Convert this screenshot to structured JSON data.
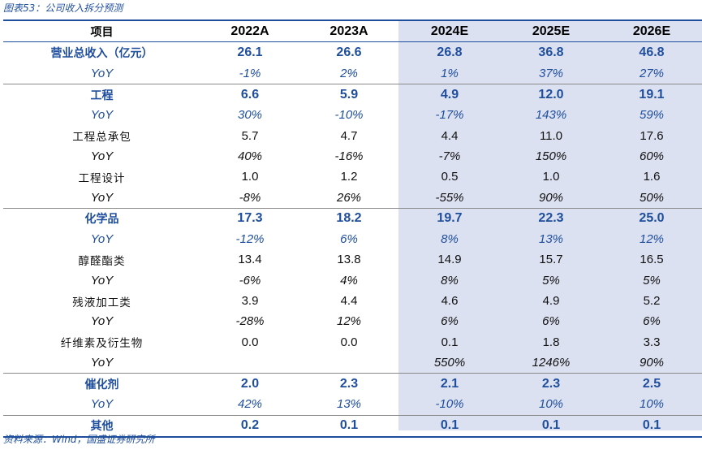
{
  "caption": "图表53：公司收入拆分预测",
  "source": "资料来源：Wind，国盛证券研究所",
  "colors": {
    "accent": "#1f4e9c",
    "forecast_bg": "#dbe1f1",
    "separator": "#8a8a8a"
  },
  "header": {
    "label": "项目",
    "cols": [
      "2022A",
      "2023A",
      "2024E",
      "2025E",
      "2026E"
    ]
  },
  "rows": [
    {
      "label": "营业总收入（亿元）",
      "vals": [
        "26.1",
        "26.6",
        "26.8",
        "36.8",
        "46.8"
      ]
    },
    {
      "label": "YoY",
      "vals": [
        "-1%",
        "2%",
        "1%",
        "37%",
        "27%"
      ]
    },
    {
      "label": "工程",
      "vals": [
        "6.6",
        "5.9",
        "4.9",
        "12.0",
        "19.1"
      ]
    },
    {
      "label": "YoY",
      "vals": [
        "30%",
        "-10%",
        "-17%",
        "143%",
        "59%"
      ]
    },
    {
      "label": "工程总承包",
      "vals": [
        "5.7",
        "4.7",
        "4.4",
        "11.0",
        "17.6"
      ]
    },
    {
      "label": "YoY",
      "vals": [
        "40%",
        "-16%",
        "-7%",
        "150%",
        "60%"
      ]
    },
    {
      "label": "工程设计",
      "vals": [
        "1.0",
        "1.2",
        "0.5",
        "1.0",
        "1.6"
      ]
    },
    {
      "label": "YoY",
      "vals": [
        "-8%",
        "26%",
        "-55%",
        "90%",
        "50%"
      ]
    },
    {
      "label": "化学品",
      "vals": [
        "17.3",
        "18.2",
        "19.7",
        "22.3",
        "25.0"
      ]
    },
    {
      "label": "YoY",
      "vals": [
        "-12%",
        "6%",
        "8%",
        "13%",
        "12%"
      ]
    },
    {
      "label": "醇醛酯类",
      "vals": [
        "13.4",
        "13.8",
        "14.9",
        "15.7",
        "16.5"
      ]
    },
    {
      "label": "YoY",
      "vals": [
        "-6%",
        "4%",
        "8%",
        "5%",
        "5%"
      ]
    },
    {
      "label": "残液加工类",
      "vals": [
        "3.9",
        "4.4",
        "4.6",
        "4.9",
        "5.2"
      ]
    },
    {
      "label": "YoY",
      "vals": [
        "-28%",
        "12%",
        "6%",
        "6%",
        "6%"
      ]
    },
    {
      "label": "纤维素及衍生物",
      "vals": [
        "0.0",
        "0.0",
        "0.1",
        "1.8",
        "3.3"
      ]
    },
    {
      "label": "YoY",
      "vals": [
        "",
        "",
        "550%",
        "1246%",
        "90%"
      ]
    },
    {
      "label": "催化剂",
      "vals": [
        "2.0",
        "2.3",
        "2.1",
        "2.3",
        "2.5"
      ]
    },
    {
      "label": "YoY",
      "vals": [
        "42%",
        "13%",
        "-10%",
        "10%",
        "10%"
      ]
    },
    {
      "label": "其他",
      "vals": [
        "0.2",
        "0.1",
        "0.1",
        "0.1",
        "0.1"
      ]
    }
  ]
}
